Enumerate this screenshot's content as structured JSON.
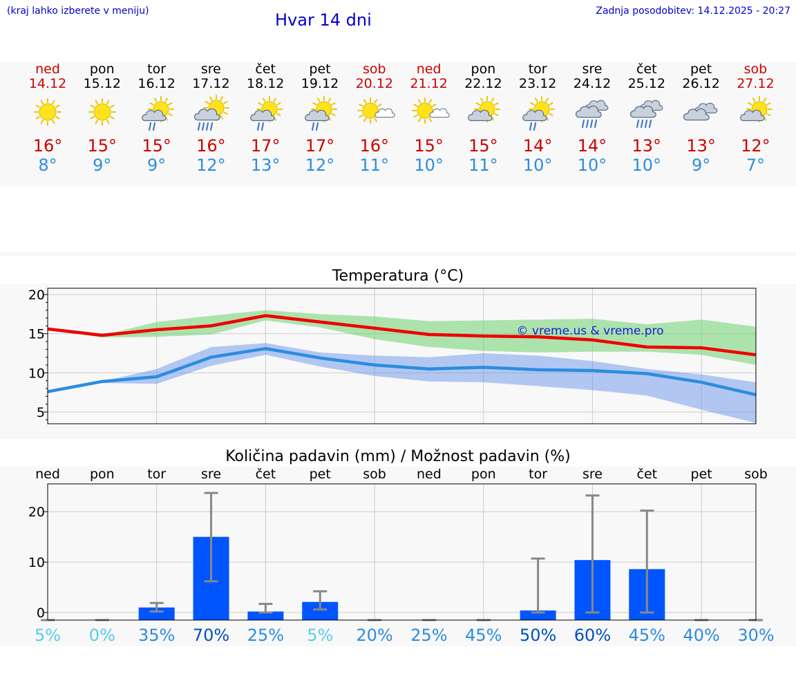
{
  "header": {
    "hint": "(kraj lahko izberete v meniju)",
    "title": "Hvar 14 dni",
    "updated": "Zadnja posodobitev: 14.12.2025 - 20:27"
  },
  "colors": {
    "max": "#cc0000",
    "min": "#2b8ce0",
    "weekend": "#cc0000",
    "bar": "#0055ff",
    "brand": "#0000cc"
  },
  "forecast": [
    {
      "day": "ned",
      "date": "14.12",
      "weekend": true,
      "icon": "sun-icon",
      "max": "16°",
      "min": "8°"
    },
    {
      "day": "pon",
      "date": "15.12",
      "weekend": false,
      "icon": "sun-icon",
      "max": "15°",
      "min": "9°"
    },
    {
      "day": "tor",
      "date": "16.12",
      "weekend": false,
      "icon": "sun-cloud-rain-icon",
      "max": "15°",
      "min": "9°"
    },
    {
      "day": "sre",
      "date": "17.12",
      "weekend": false,
      "icon": "sun-cloud-heavy-rain-icon",
      "max": "16°",
      "min": "12°"
    },
    {
      "day": "čet",
      "date": "18.12",
      "weekend": false,
      "icon": "sun-cloud-rain-icon",
      "max": "17°",
      "min": "13°"
    },
    {
      "day": "pet",
      "date": "19.12",
      "weekend": false,
      "icon": "sun-cloud-rain-icon",
      "max": "17°",
      "min": "12°"
    },
    {
      "day": "sob",
      "date": "20.12",
      "weekend": true,
      "icon": "sun-small-cloud-icon",
      "max": "16°",
      "min": "11°"
    },
    {
      "day": "ned",
      "date": "21.12",
      "weekend": true,
      "icon": "sun-small-cloud-icon",
      "max": "15°",
      "min": "10°"
    },
    {
      "day": "pon",
      "date": "22.12",
      "weekend": false,
      "icon": "sun-cloud-icon",
      "max": "15°",
      "min": "11°"
    },
    {
      "day": "tor",
      "date": "23.12",
      "weekend": false,
      "icon": "sun-cloud-rain-icon",
      "max": "14°",
      "min": "10°"
    },
    {
      "day": "sre",
      "date": "24.12",
      "weekend": false,
      "icon": "cloud-heavy-rain-icon",
      "max": "14°",
      "min": "10°"
    },
    {
      "day": "čet",
      "date": "25.12",
      "weekend": false,
      "icon": "cloud-heavy-rain-icon",
      "max": "13°",
      "min": "10°"
    },
    {
      "day": "pet",
      "date": "26.12",
      "weekend": false,
      "icon": "cloudy-icon",
      "max": "13°",
      "min": "9°"
    },
    {
      "day": "sob",
      "date": "27.12",
      "weekend": true,
      "icon": "sun-cloud-icon",
      "max": "12°",
      "min": "7°"
    }
  ],
  "chart_data": [
    {
      "type": "line",
      "title": "Temperatura (°C)",
      "watermark": "© vreme.us & vreme.pro",
      "x": [
        0,
        1,
        2,
        3,
        4,
        5,
        6,
        7,
        8,
        9,
        10,
        11,
        12,
        13
      ],
      "ylim": [
        3.5,
        20.8
      ],
      "yticks": [
        5,
        10,
        15,
        20
      ],
      "series": [
        {
          "name": "max",
          "values": [
            15.6,
            14.8,
            15.5,
            16.0,
            17.3,
            16.5,
            15.7,
            14.9,
            14.7,
            14.6,
            14.2,
            13.3,
            13.2,
            12.3
          ]
        },
        {
          "name": "min",
          "values": [
            7.6,
            8.9,
            9.5,
            12.0,
            13.1,
            11.9,
            11.0,
            10.5,
            10.7,
            10.4,
            10.3,
            9.9,
            8.8,
            7.2
          ]
        },
        {
          "name": "max_range_high",
          "values": [
            15.6,
            14.8,
            16.5,
            17.3,
            18.0,
            17.5,
            17.2,
            16.6,
            16.7,
            16.8,
            16.9,
            16.2,
            16.8,
            15.9
          ]
        },
        {
          "name": "max_range_low",
          "values": [
            15.6,
            14.5,
            14.6,
            14.9,
            16.7,
            15.8,
            14.3,
            13.3,
            12.8,
            12.6,
            12.7,
            12.7,
            12.3,
            11.0
          ]
        },
        {
          "name": "min_range_high",
          "values": [
            7.6,
            8.9,
            10.5,
            13.3,
            13.8,
            12.6,
            12.2,
            12.0,
            12.5,
            12.2,
            11.5,
            10.5,
            9.8,
            8.8
          ]
        },
        {
          "name": "min_range_low",
          "values": [
            7.6,
            8.7,
            8.6,
            10.9,
            12.3,
            10.8,
            9.6,
            8.9,
            8.8,
            8.3,
            7.8,
            7.1,
            5.3,
            3.6
          ]
        }
      ]
    },
    {
      "type": "bar",
      "title": "Količina padavin (mm) / Možnost padavin (%)",
      "categories": [
        "ned",
        "pon",
        "tor",
        "sre",
        "čet",
        "pet",
        "sob",
        "ned",
        "pon",
        "tor",
        "sre",
        "čet",
        "pet",
        "sob"
      ],
      "ylim": [
        -1.5,
        25.5
      ],
      "yticks": [
        0,
        10,
        20
      ],
      "values": [
        0,
        0,
        1.0,
        15.0,
        0.2,
        2.1,
        0,
        0,
        0,
        0.4,
        10.4,
        8.6,
        0,
        0
      ],
      "err_low": [
        0,
        0,
        0.2,
        6.2,
        0.0,
        0.6,
        0,
        0,
        0,
        0.0,
        0.0,
        0.0,
        0,
        0
      ],
      "err_high": [
        0,
        0,
        1.9,
        23.7,
        1.7,
        4.2,
        0,
        0,
        0,
        10.7,
        23.2,
        20.2,
        0,
        0
      ],
      "chance": [
        "5%",
        "0%",
        "35%",
        "70%",
        "25%",
        "5%",
        "20%",
        "25%",
        "45%",
        "50%",
        "60%",
        "45%",
        "40%",
        "30%"
      ],
      "chance_colors": [
        "#55ccee",
        "#55ccee",
        "#2b8ce0",
        "#0050c0",
        "#2b8ce0",
        "#55ccee",
        "#2b8ce0",
        "#2b8ce0",
        "#2b8ce0",
        "#0050c0",
        "#0050c0",
        "#2b8ce0",
        "#2b8ce0",
        "#2b8ce0"
      ]
    }
  ]
}
